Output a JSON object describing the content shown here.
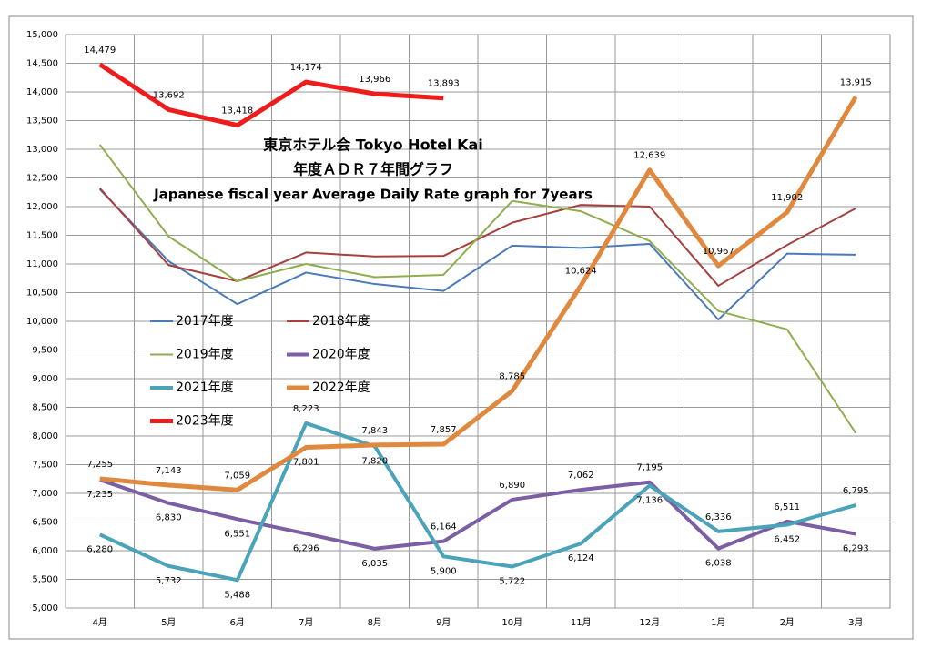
{
  "chart_data": {
    "type": "line",
    "title_lines": [
      "東京ホテル会 Tokyo Hotel Kai",
      "年度ＡＤＲ７年間グラフ",
      "Japanese fiscal year Average Daily Rate graph for 7years"
    ],
    "categories": [
      "4月",
      "5月",
      "6月",
      "7月",
      "8月",
      "9月",
      "10月",
      "11月",
      "12月",
      "1月",
      "2月",
      "3月"
    ],
    "ylim": [
      5000,
      15000
    ],
    "yticks": [
      {
        "value": 5000,
        "label": "5,000"
      },
      {
        "value": 5500,
        "label": "5,500"
      },
      {
        "value": 6000,
        "label": "6,000"
      },
      {
        "value": 6500,
        "label": "6,500"
      },
      {
        "value": 7000,
        "label": "7,000"
      },
      {
        "value": 7500,
        "label": "7,500"
      },
      {
        "value": 8000,
        "label": "8,000"
      },
      {
        "value": 8500,
        "label": "8,500"
      },
      {
        "value": 9000,
        "label": "9,000"
      },
      {
        "value": 9500,
        "label": "9,500"
      },
      {
        "value": 10000,
        "label": "10,000"
      },
      {
        "value": 10500,
        "label": "10,500"
      },
      {
        "value": 11000,
        "label": "11,000"
      },
      {
        "value": 11500,
        "label": "11,500"
      },
      {
        "value": 12000,
        "label": "12,000"
      },
      {
        "value": 12500,
        "label": "12,500"
      },
      {
        "value": 13000,
        "label": "13,000"
      },
      {
        "value": 13500,
        "label": "13,500"
      },
      {
        "value": 14000,
        "label": "14,000"
      },
      {
        "value": 14500,
        "label": "14,500"
      },
      {
        "value": 15000,
        "label": "15,000"
      }
    ],
    "grid": true,
    "series": [
      {
        "name": "2017年度",
        "color": "#4a7ab8",
        "line_width": 2,
        "values": [
          12300,
          11050,
          10300,
          10850,
          10650,
          10530,
          11320,
          11280,
          11350,
          10030,
          11180,
          11160
        ]
      },
      {
        "name": "2018年度",
        "color": "#a5413e",
        "line_width": 2,
        "values": [
          12320,
          10980,
          10700,
          11200,
          11130,
          11140,
          11720,
          12030,
          12000,
          10620,
          11330,
          11970
        ]
      },
      {
        "name": "2019年度",
        "color": "#8fae4f",
        "line_width": 2,
        "values": [
          13080,
          11480,
          10700,
          11000,
          10770,
          10810,
          12100,
          11920,
          11400,
          10180,
          9860,
          8050
        ]
      },
      {
        "name": "2020年度",
        "color": "#7b5ea3",
        "line_width": 4,
        "values": [
          7235,
          6830,
          6551,
          6296,
          6035,
          6164,
          6890,
          7062,
          7195,
          6038,
          6511,
          6293
        ],
        "value_labels": [
          "7,235",
          "6,830",
          "6,551",
          "6,296",
          "6,035",
          "6,164",
          "6,890",
          "7,062",
          "7,195",
          "6,038",
          "6,511",
          "6,293"
        ]
      },
      {
        "name": "2021年度",
        "color": "#4aa3b8",
        "line_width": 4,
        "values": [
          6280,
          5732,
          5488,
          8223,
          7820,
          5900,
          5722,
          6124,
          7136,
          6336,
          6452,
          6795
        ],
        "value_labels": [
          "6,280",
          "5,732",
          "5,488",
          "8,223",
          "7,820",
          "5,900",
          "5,722",
          "6,124",
          "7,136",
          "6,336",
          "6,452",
          "6,795"
        ]
      },
      {
        "name": "2022年度",
        "color": "#e0893e",
        "line_width": 5,
        "values": [
          7255,
          7143,
          7059,
          7801,
          7843,
          7857,
          8785,
          10624,
          12639,
          10967,
          11902,
          13915
        ],
        "value_labels": [
          "7,255",
          "7,143",
          "7,059",
          "7,801",
          "7,843",
          "7,857",
          "8,785",
          "10,624",
          "12,639",
          "10,967",
          "11,902",
          "13,915"
        ]
      },
      {
        "name": "2023年度",
        "color": "#ee1c1c",
        "line_width": 5,
        "values": [
          14479,
          13692,
          13418,
          14174,
          13966,
          13893,
          null,
          null,
          null,
          null,
          null,
          null
        ],
        "value_labels": [
          "14,479",
          "13,692",
          "13,418",
          "14,174",
          "13,966",
          "13,893",
          null,
          null,
          null,
          null,
          null,
          null
        ]
      }
    ]
  }
}
